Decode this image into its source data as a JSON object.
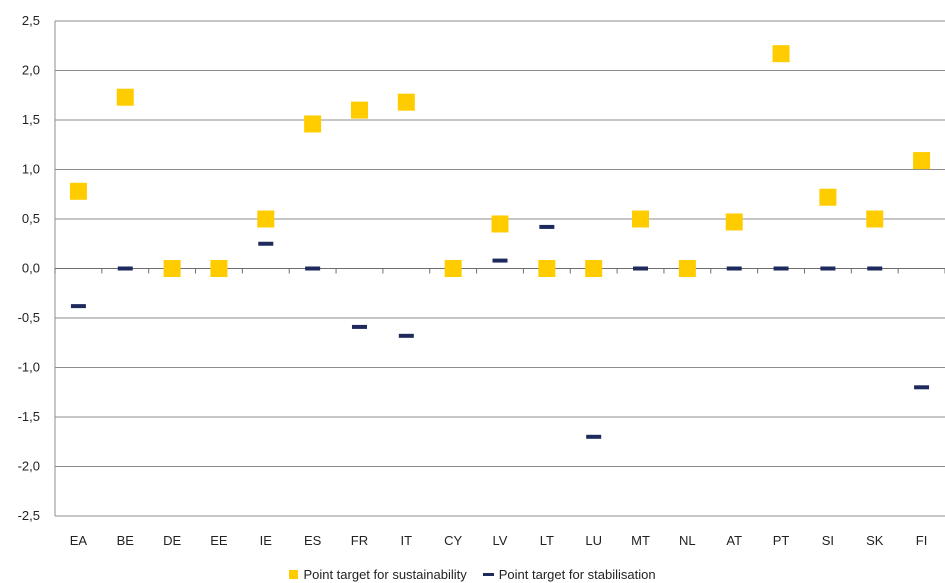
{
  "chart_data": {
    "type": "scatter",
    "categories": [
      "EA",
      "BE",
      "DE",
      "EE",
      "IE",
      "ES",
      "FR",
      "IT",
      "CY",
      "LV",
      "LT",
      "LU",
      "MT",
      "NL",
      "AT",
      "PT",
      "SI",
      "SK",
      "FI"
    ],
    "series": [
      {
        "name": "Point target for sustainability",
        "marker": "square",
        "color": "#FFCC00",
        "values": [
          0.78,
          1.73,
          0.0,
          0.0,
          0.5,
          1.46,
          1.6,
          1.68,
          0.0,
          0.45,
          0.0,
          0.0,
          0.5,
          0.0,
          0.47,
          2.17,
          0.72,
          0.5,
          1.09
        ]
      },
      {
        "name": "Point target for stabilisation",
        "marker": "dash",
        "color": "#1F2A5C",
        "values": [
          -0.38,
          0.0,
          0.0,
          0.0,
          0.25,
          0.0,
          -0.59,
          -0.68,
          0.0,
          0.08,
          0.42,
          -1.7,
          0.0,
          0.0,
          0.0,
          0.0,
          0.0,
          0.0,
          -1.2
        ]
      }
    ],
    "yticks": [
      "2,5",
      "2,0",
      "1,5",
      "1,0",
      "0,5",
      "0,0",
      "-0,5",
      "-1,0",
      "-1,5",
      "-2,0",
      "-2,5"
    ],
    "ylim": [
      -2.5,
      2.5
    ],
    "grid": true,
    "legend_position": "bottom",
    "title": "",
    "xlabel": "",
    "ylabel": ""
  }
}
